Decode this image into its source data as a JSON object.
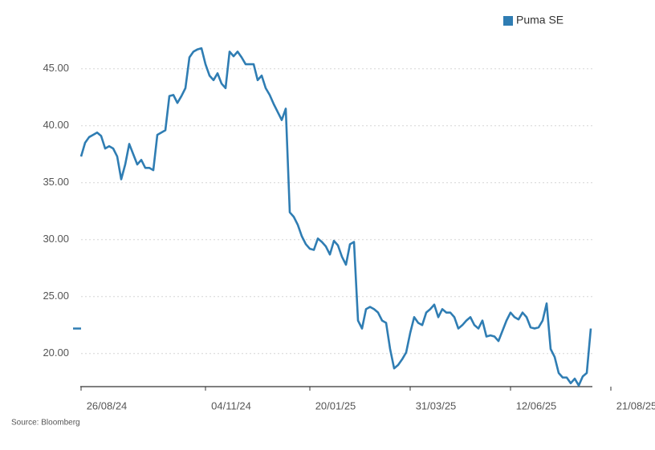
{
  "chart_data": {
    "type": "line",
    "legend": "top-right",
    "source": "Source: Bloomberg",
    "categories": [
      "26/08/24",
      null,
      null,
      null,
      null,
      null,
      null,
      null,
      null,
      null,
      null,
      null,
      null,
      null,
      null,
      null,
      null,
      null,
      null,
      null,
      null,
      null,
      null,
      null,
      null,
      null,
      null,
      null,
      null,
      null,
      null,
      "04/11/24",
      null,
      null,
      null,
      null,
      null,
      null,
      null,
      null,
      null,
      null,
      null,
      null,
      null,
      null,
      null,
      null,
      null,
      null,
      null,
      null,
      null,
      null,
      null,
      null,
      null,
      "20/01/25",
      null,
      null,
      null,
      null,
      null,
      null,
      null,
      null,
      null,
      null,
      null,
      null,
      null,
      null,
      null,
      null,
      null,
      null,
      null,
      null,
      null,
      null,
      null,
      null,
      "31/03/25",
      null,
      null,
      null,
      null,
      null,
      null,
      null,
      null,
      null,
      null,
      null,
      null,
      null,
      null,
      null,
      null,
      null,
      null,
      null,
      null,
      null,
      null,
      null,
      null,
      "12/06/25",
      null,
      null,
      null,
      null,
      null,
      null,
      null,
      null,
      null,
      null,
      null,
      null,
      null,
      null,
      null,
      null,
      null,
      null,
      null,
      null,
      null,
      null,
      null,
      null,
      "21/08/25"
    ],
    "series": [
      {
        "name": "Puma SE",
        "color": "#2f7db3",
        "values": [
          37.3,
          38.5,
          39.0,
          39.2,
          39.4,
          39.1,
          38.0,
          38.2,
          38.0,
          37.3,
          35.3,
          36.6,
          38.4,
          37.5,
          36.6,
          37.0,
          36.3,
          36.3,
          36.1,
          39.2,
          39.4,
          39.6,
          42.6,
          42.7,
          42.0,
          42.6,
          43.3,
          46.0,
          46.5,
          46.7,
          46.8,
          45.4,
          44.4,
          44.0,
          44.6,
          43.7,
          43.3,
          46.5,
          46.1,
          46.5,
          46.0,
          45.4,
          45.4,
          45.4,
          44.0,
          44.4,
          43.3,
          42.7,
          41.9,
          41.2,
          40.5,
          41.5,
          32.4,
          32.0,
          31.3,
          30.3,
          29.6,
          29.2,
          29.1,
          30.1,
          29.8,
          29.4,
          28.7,
          29.9,
          29.5,
          28.5,
          27.8,
          29.6,
          29.8,
          22.9,
          22.2,
          23.9,
          24.1,
          23.9,
          23.6,
          22.9,
          22.7,
          20.4,
          18.7,
          19.0,
          19.5,
          20.1,
          21.8,
          23.2,
          22.7,
          22.5,
          23.6,
          23.9,
          24.3,
          23.2,
          23.9,
          23.6,
          23.6,
          23.2,
          22.2,
          22.5,
          22.9,
          23.2,
          22.5,
          22.2,
          22.9,
          21.5,
          21.6,
          21.5,
          21.1,
          22.0,
          22.9,
          23.6,
          23.2,
          23.0,
          23.6,
          23.2,
          22.3,
          22.2,
          22.3,
          22.9,
          24.4,
          20.4,
          19.7,
          18.3,
          17.9,
          17.9,
          17.4,
          17.8,
          17.2,
          18.0,
          18.3,
          22.2,
          null,
          null,
          null,
          null,
          null
        ]
      }
    ],
    "ylim": [
      17.1,
      48.5
    ],
    "yticks": [
      {
        "value": 20,
        "label": "20.00"
      },
      {
        "value": 25,
        "label": "25.00"
      },
      {
        "value": 30,
        "label": "30.00"
      },
      {
        "value": 35,
        "label": "35.00"
      },
      {
        "value": 40,
        "label": "40.00"
      },
      {
        "value": 45,
        "label": "45.00"
      }
    ],
    "grid": true
  }
}
